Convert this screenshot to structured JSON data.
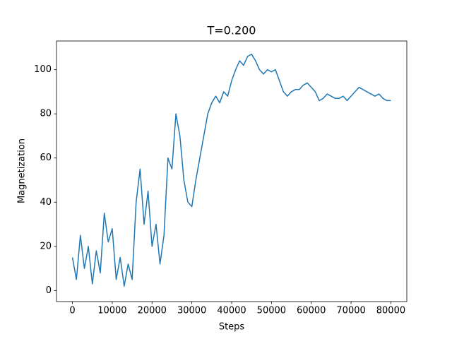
{
  "chart_data": {
    "type": "line",
    "title": "T=0.200",
    "x_label": "Steps",
    "y_label": "Magnetization",
    "color": "#1f77b4",
    "x": [
      0,
      1000,
      2000,
      3000,
      4000,
      5000,
      6000,
      7000,
      8000,
      9000,
      10000,
      11000,
      12000,
      13000,
      14000,
      15000,
      16000,
      17000,
      18000,
      19000,
      20000,
      21000,
      22000,
      23000,
      24000,
      25000,
      26000,
      27000,
      28000,
      29000,
      30000,
      31000,
      32000,
      33000,
      34000,
      35000,
      36000,
      37000,
      38000,
      39000,
      40000,
      41000,
      42000,
      43000,
      44000,
      45000,
      46000,
      47000,
      48000,
      49000,
      50000,
      51000,
      52000,
      53000,
      54000,
      55000,
      56000,
      57000,
      58000,
      59000,
      60000,
      61000,
      62000,
      63000,
      64000,
      65000,
      66000,
      67000,
      68000,
      69000,
      70000,
      71000,
      72000,
      73000,
      74000,
      75000,
      76000,
      77000,
      78000,
      79000,
      80000
    ],
    "values": [
      15,
      5,
      25,
      10,
      20,
      3,
      18,
      8,
      35,
      22,
      28,
      5,
      15,
      2,
      12,
      5,
      40,
      55,
      30,
      45,
      20,
      30,
      12,
      25,
      60,
      55,
      80,
      70,
      50,
      40,
      38,
      50,
      60,
      70,
      80,
      85,
      88,
      85,
      90,
      88,
      95,
      100,
      104,
      102,
      106,
      107,
      104,
      100,
      98,
      100,
      99,
      100,
      95,
      90,
      88,
      90,
      91,
      91,
      93,
      94,
      92,
      90,
      86,
      87,
      89,
      88,
      87,
      87,
      88,
      86,
      88,
      90,
      92,
      91,
      90,
      89,
      88,
      89,
      87,
      86,
      86
    ],
    "xlim": [
      -4000,
      84000
    ],
    "ylim": [
      -5,
      113
    ],
    "xticks": [
      0,
      10000,
      20000,
      30000,
      40000,
      50000,
      60000,
      70000,
      80000
    ],
    "yticks": [
      0,
      20,
      40,
      60,
      80,
      100
    ]
  }
}
